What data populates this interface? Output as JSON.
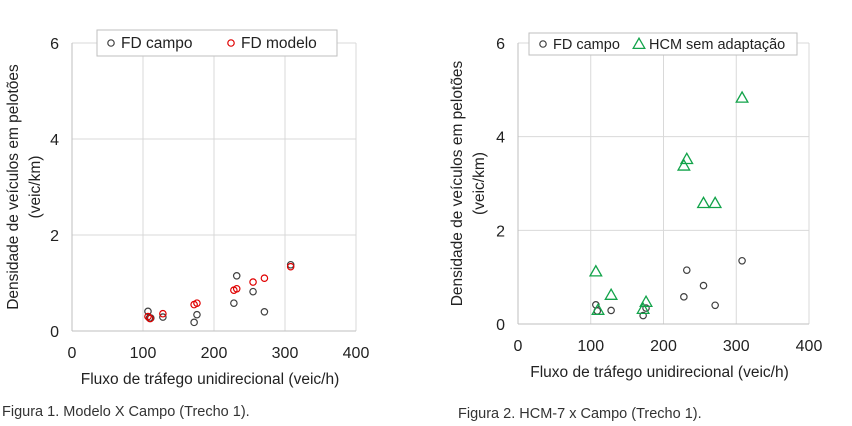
{
  "captions": [
    "Figura 1. Modelo X Campo (Trecho 1).",
    "Figura 2. HCM-7 x Campo (Trecho 1)."
  ],
  "chart_data": [
    {
      "type": "scatter",
      "title": "",
      "xlabel": "Fluxo de tráfego unidirecional (veic/h)",
      "ylabel": [
        "Densidade de veículos em pelotões",
        "(veic/km)"
      ],
      "xlim": [
        0,
        400
      ],
      "ylim": [
        0,
        6
      ],
      "xticks": [
        0,
        100,
        200,
        300,
        400
      ],
      "yticks": [
        0,
        2,
        4,
        6
      ],
      "grid": true,
      "legend_position": "top",
      "series": [
        {
          "name": "FD campo",
          "marker": "circle",
          "color": "#404040",
          "points": [
            [
              107,
              0.41
            ],
            [
              109,
              0.27
            ],
            [
              111,
              0.27
            ],
            [
              128,
              0.29
            ],
            [
              172,
              0.18
            ],
            [
              176,
              0.34
            ],
            [
              228,
              0.58
            ],
            [
              232,
              1.15
            ],
            [
              255,
              0.82
            ],
            [
              271,
              0.4
            ],
            [
              308,
              1.38
            ]
          ]
        },
        {
          "name": "FD modelo",
          "marker": "circle",
          "color": "#e00000",
          "points": [
            [
              107,
              0.3
            ],
            [
              110,
              0.26
            ],
            [
              128,
              0.36
            ],
            [
              172,
              0.55
            ],
            [
              176,
              0.58
            ],
            [
              228,
              0.85
            ],
            [
              232,
              0.88
            ],
            [
              255,
              1.02
            ],
            [
              271,
              1.1
            ],
            [
              308,
              1.34
            ]
          ]
        }
      ]
    },
    {
      "type": "scatter",
      "title": "",
      "xlabel": "Fluxo de tráfego unidirecional (veic/h)",
      "ylabel": [
        "Densidade de veículos em pelotões",
        "(veic/km)"
      ],
      "xlim": [
        0,
        400
      ],
      "ylim": [
        0,
        6
      ],
      "xticks": [
        0,
        100,
        200,
        300,
        400
      ],
      "yticks": [
        0,
        2,
        4,
        6
      ],
      "grid": true,
      "legend_position": "top",
      "series": [
        {
          "name": "FD campo",
          "marker": "circle",
          "color": "#404040",
          "points": [
            [
              107,
              0.41
            ],
            [
              109,
              0.28
            ],
            [
              128,
              0.29
            ],
            [
              172,
              0.18
            ],
            [
              176,
              0.34
            ],
            [
              228,
              0.58
            ],
            [
              232,
              1.15
            ],
            [
              255,
              0.82
            ],
            [
              271,
              0.4
            ],
            [
              308,
              1.35
            ]
          ]
        },
        {
          "name": "HCM sem adaptação",
          "marker": "triangle",
          "color": "#12a34a",
          "points": [
            [
              107,
              1.12
            ],
            [
              110,
              0.3
            ],
            [
              128,
              0.62
            ],
            [
              172,
              0.32
            ],
            [
              176,
              0.47
            ],
            [
              228,
              3.38
            ],
            [
              232,
              3.52
            ],
            [
              255,
              2.58
            ],
            [
              271,
              2.58
            ],
            [
              308,
              4.83
            ]
          ]
        }
      ]
    }
  ]
}
